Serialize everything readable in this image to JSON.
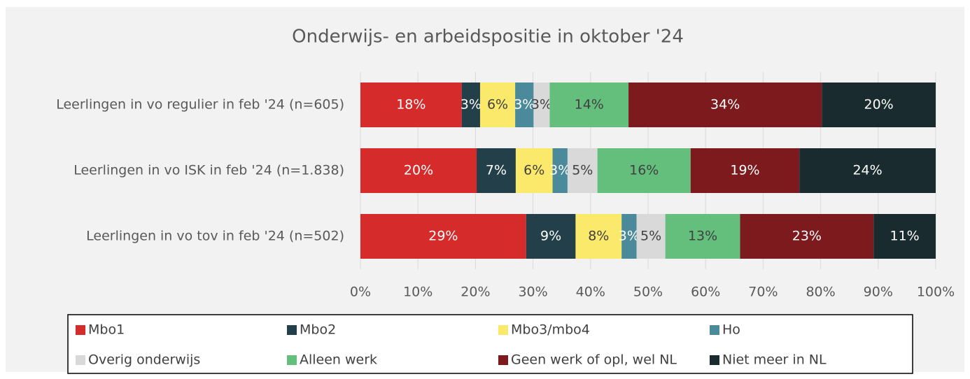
{
  "chart_data": {
    "type": "bar",
    "orientation": "horizontal",
    "stacked": true,
    "title": "Onderwijs- en arbeidspositie in oktober '24",
    "categories": [
      "Leerlingen in vo regulier in feb '24 (n=605)",
      "Leerlingen in vo ISK in feb '24 (n=1.838)",
      "Leerlingen in vo tov in feb '24 (n=502)"
    ],
    "series": [
      {
        "name": "Mbo1",
        "color": "#d62b2b",
        "values": [
          17.6,
          20.2,
          28.8
        ],
        "value_labels": [
          "18%",
          "20%",
          "29%"
        ]
      },
      {
        "name": "Mbo2",
        "color": "#23404a",
        "values": [
          3.2,
          6.8,
          8.6
        ],
        "value_labels": [
          "3%",
          "7%",
          "9%"
        ]
      },
      {
        "name": "Mbo3/mbo4",
        "color": "#fbe96c",
        "values": [
          6.1,
          6.4,
          8.0
        ],
        "value_labels": [
          "6%",
          "6%",
          "8%"
        ]
      },
      {
        "name": "Ho",
        "color": "#4a8a9a",
        "values": [
          3.2,
          2.6,
          2.6
        ],
        "value_labels": [
          "3%",
          "3%",
          "3%"
        ]
      },
      {
        "name": "Overig onderwijs",
        "color": "#d9d9d9",
        "values": [
          2.8,
          5.2,
          5.0
        ],
        "value_labels": [
          "3%",
          "5%",
          "5%"
        ]
      },
      {
        "name": "Alleen werk",
        "color": "#64bf7c",
        "values": [
          13.7,
          16.2,
          13.0
        ],
        "value_labels": [
          "14%",
          "16%",
          "13%"
        ]
      },
      {
        "name": "Geen werk of opl, wel NL",
        "color": "#7d1a1d",
        "values": [
          33.6,
          18.9,
          23.2
        ],
        "value_labels": [
          "34%",
          "19%",
          "23%"
        ]
      },
      {
        "name": "Niet meer in NL",
        "color": "#1a2b30",
        "values": [
          19.8,
          23.7,
          10.8
        ],
        "value_labels": [
          "20%",
          "24%",
          "11%"
        ]
      }
    ],
    "xlim": [
      0,
      100
    ],
    "xticks": [
      {
        "value": 0,
        "label": "0%"
      },
      {
        "value": 10,
        "label": "10%"
      },
      {
        "value": 20,
        "label": "20%"
      },
      {
        "value": 30,
        "label": "30%"
      },
      {
        "value": 40,
        "label": "40%"
      },
      {
        "value": 50,
        "label": "50%"
      },
      {
        "value": 60,
        "label": "60%"
      },
      {
        "value": 70,
        "label": "70%"
      },
      {
        "value": 80,
        "label": "80%"
      },
      {
        "value": 90,
        "label": "90%"
      },
      {
        "value": 100,
        "label": "100%"
      }
    ],
    "grid": true,
    "legend": "bottom"
  }
}
